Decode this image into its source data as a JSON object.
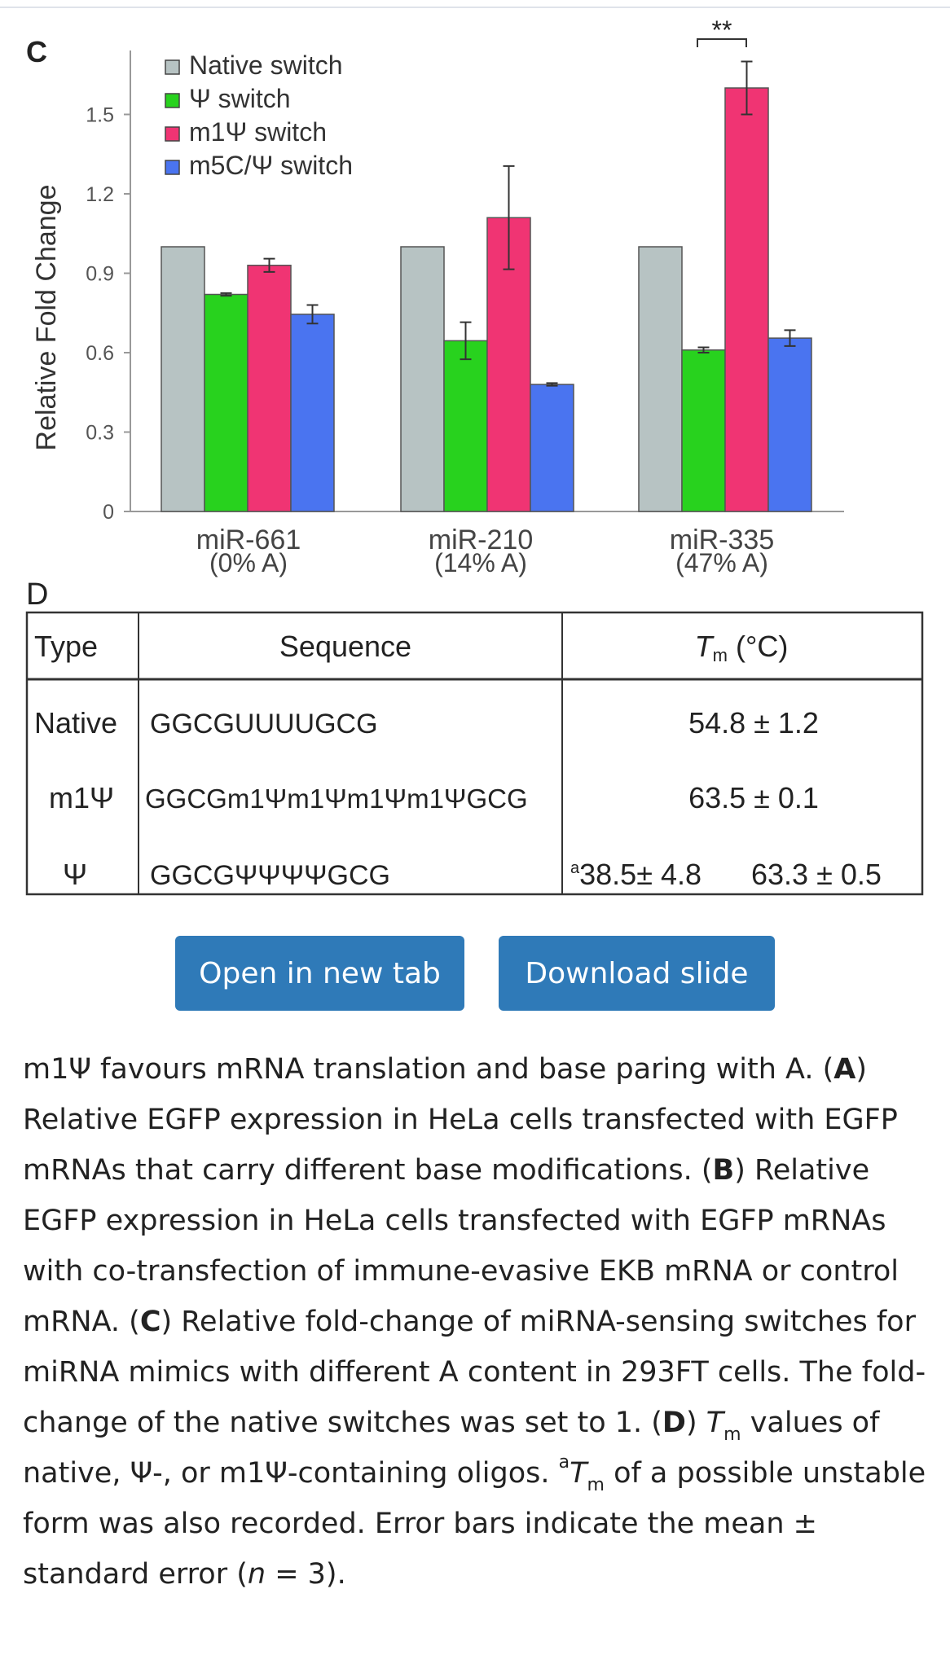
{
  "figure": {
    "panel_c_label": "C",
    "panel_d_label": "D",
    "chart_data": {
      "type": "bar",
      "categories": [
        "miR-661",
        "miR-210",
        "miR-335"
      ],
      "category_sublabels": [
        "(0% A)",
        "(14% A)",
        "(47% A)"
      ],
      "series": [
        {
          "name": "Native switch",
          "color": "#b7c3c3",
          "values": [
            1.0,
            1.0,
            1.0
          ],
          "errors": [
            0,
            0,
            0
          ]
        },
        {
          "name": "Ψ switch",
          "color": "#28d21e",
          "values": [
            0.82,
            0.645,
            0.61
          ],
          "errors": [
            0.005,
            0.07,
            0.01
          ]
        },
        {
          "name": "m1Ψ switch",
          "color": "#f03473",
          "values": [
            0.93,
            1.11,
            1.6
          ],
          "errors": [
            0.025,
            0.195,
            0.1
          ]
        },
        {
          "name": "m5C/Ψ switch",
          "color": "#4a74f0",
          "values": [
            0.745,
            0.48,
            0.655
          ],
          "errors": [
            0.035,
            0.005,
            0.03
          ]
        }
      ],
      "ylabel": "Relative Fold Change",
      "xlabel": "",
      "yticks": [
        0,
        0.3,
        0.6,
        0.9,
        1.2,
        1.5
      ],
      "ytick_labels": [
        "0",
        "0.3",
        "0.6",
        "0.9",
        "1.2",
        "1.5"
      ],
      "ylim": [
        0,
        1.72
      ],
      "annotation": "**",
      "legend_position": "top-left",
      "grid": false
    },
    "table": {
      "headers": {
        "type": "Type",
        "sequence": "Sequence",
        "tm_main": "T",
        "tm_sub": "m",
        "tm_unit": " (°C)"
      },
      "rows": [
        {
          "type": "Native",
          "sequence": "GGCGUUUUGCG",
          "tm": "54.8 ± 1.2"
        },
        {
          "type": "m1Ψ",
          "sequence": "GGCGm1Ψm1Ψm1Ψm1ΨGCG",
          "tm": "63.5 ± 0.1"
        },
        {
          "type": "Ψ",
          "sequence": "GGCGΨΨΨΨGCG",
          "tm_note": "a",
          "tm": "38.5± 4.8",
          "tm_second": "63.3 ± 0.5"
        }
      ]
    }
  },
  "buttons": {
    "open": "Open in new tab",
    "download": "Download slide"
  },
  "caption": {
    "p1": "m1Ψ favours mRNA translation and base paring with A. (",
    "A": "A",
    "p2": ") Relative EGFP expression in HeLa cells transfected with EGFP mRNAs that carry different base modifications. (",
    "B": "B",
    "p3": ") Relative EGFP expression in HeLa cells transfected with EGFP mRNAs with co-transfection of immune-evasive EKB mRNA or control mRNA. (",
    "C": "C",
    "p4": ") Relative fold-change of miRNA-sensing switches for miRNA mimics with different A content in 293FT cells. The fold-change of the native switches was set to 1. (",
    "D": "D",
    "p5": ") ",
    "T1": "T",
    "m1": "m",
    "p6": " values of native, Ψ-, or m1Ψ-containing oligos. ",
    "a": "a",
    "T2": "T",
    "m2": "m",
    "p7": " of a possible unstable form was also recorded. Error bars indicate the mean ± standard error (",
    "n": "n",
    "p8": " = 3)."
  }
}
